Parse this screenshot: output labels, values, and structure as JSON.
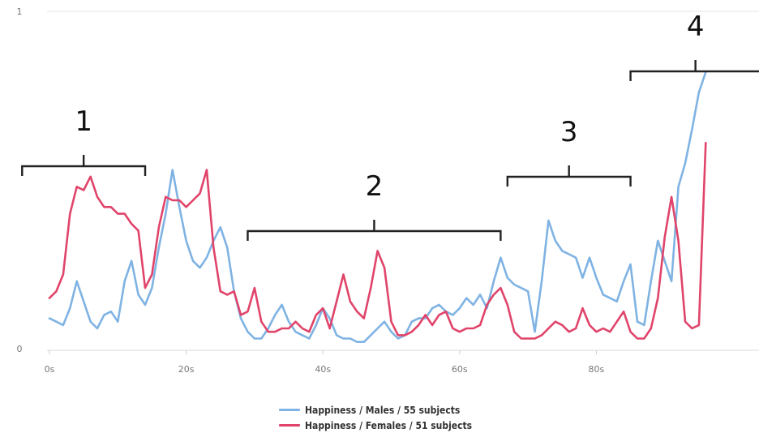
{
  "chart_data": {
    "type": "line",
    "x_unit": "s",
    "xlim": [
      0,
      97
    ],
    "ylim": [
      0,
      1
    ],
    "x_ticks": [
      {
        "value": 0,
        "label": "0s"
      },
      {
        "value": 20,
        "label": "20s"
      },
      {
        "value": 40,
        "label": "40s"
      },
      {
        "value": 60,
        "label": "60s"
      },
      {
        "value": 80,
        "label": "80s"
      }
    ],
    "y_ticks": [
      {
        "value": 0,
        "label": "0"
      },
      {
        "value": 1,
        "label": "1"
      }
    ],
    "grid": "horizontal",
    "legend_position": "bottom",
    "series": [
      {
        "name": "Happiness / Males / 55 subjects",
        "color": "#7fb3e3",
        "x": [
          0,
          1,
          2,
          3,
          4,
          5,
          6,
          7,
          8,
          9,
          10,
          11,
          12,
          13,
          14,
          15,
          16,
          17,
          18,
          19,
          20,
          21,
          22,
          23,
          24,
          25,
          26,
          27,
          28,
          29,
          30,
          31,
          32,
          33,
          34,
          35,
          36,
          37,
          38,
          39,
          40,
          41,
          42,
          43,
          44,
          45,
          46,
          47,
          48,
          49,
          50,
          51,
          52,
          53,
          54,
          55,
          56,
          57,
          58,
          59,
          60,
          61,
          62,
          63,
          64,
          65,
          66,
          67,
          68,
          69,
          70,
          71,
          72,
          73,
          74,
          75,
          76,
          77,
          78,
          79,
          80,
          81,
          82,
          83,
          84,
          85,
          86,
          87,
          88,
          89,
          90,
          91,
          92,
          93,
          94,
          95,
          96
        ],
        "values": [
          0.09,
          0.08,
          0.07,
          0.12,
          0.2,
          0.14,
          0.08,
          0.06,
          0.1,
          0.11,
          0.08,
          0.2,
          0.26,
          0.16,
          0.13,
          0.18,
          0.3,
          0.4,
          0.53,
          0.42,
          0.32,
          0.26,
          0.24,
          0.27,
          0.32,
          0.36,
          0.3,
          0.17,
          0.09,
          0.05,
          0.03,
          0.03,
          0.06,
          0.1,
          0.13,
          0.08,
          0.05,
          0.04,
          0.03,
          0.07,
          0.12,
          0.09,
          0.04,
          0.03,
          0.03,
          0.02,
          0.02,
          0.04,
          0.06,
          0.08,
          0.05,
          0.03,
          0.04,
          0.08,
          0.09,
          0.09,
          0.12,
          0.13,
          0.11,
          0.1,
          0.12,
          0.15,
          0.13,
          0.16,
          0.12,
          0.2,
          0.27,
          0.21,
          0.19,
          0.18,
          0.17,
          0.05,
          0.2,
          0.38,
          0.32,
          0.29,
          0.28,
          0.27,
          0.21,
          0.27,
          0.21,
          0.16,
          0.15,
          0.14,
          0.2,
          0.25,
          0.08,
          0.07,
          0.2,
          0.32,
          0.26,
          0.2,
          0.48,
          0.55,
          0.65,
          0.76,
          0.82
        ]
      },
      {
        "name": "Happiness / Females / 51 subjects",
        "color": "#e0446a",
        "x": [
          0,
          1,
          2,
          3,
          4,
          5,
          6,
          7,
          8,
          9,
          10,
          11,
          12,
          13,
          14,
          15,
          16,
          17,
          18,
          19,
          20,
          21,
          22,
          23,
          24,
          25,
          26,
          27,
          28,
          29,
          30,
          31,
          32,
          33,
          34,
          35,
          36,
          37,
          38,
          39,
          40,
          41,
          42,
          43,
          44,
          45,
          46,
          47,
          48,
          49,
          50,
          51,
          52,
          53,
          54,
          55,
          56,
          57,
          58,
          59,
          60,
          61,
          62,
          63,
          64,
          65,
          66,
          67,
          68,
          69,
          70,
          71,
          72,
          73,
          74,
          75,
          76,
          77,
          78,
          79,
          80,
          81,
          82,
          83,
          84,
          85,
          86,
          87,
          88,
          89,
          90,
          91,
          92,
          93,
          94,
          95,
          96
        ],
        "values": [
          0.15,
          0.17,
          0.22,
          0.4,
          0.48,
          0.47,
          0.51,
          0.45,
          0.42,
          0.42,
          0.4,
          0.4,
          0.37,
          0.35,
          0.18,
          0.22,
          0.36,
          0.45,
          0.44,
          0.44,
          0.42,
          0.44,
          0.46,
          0.53,
          0.3,
          0.17,
          0.16,
          0.17,
          0.1,
          0.11,
          0.18,
          0.08,
          0.05,
          0.05,
          0.06,
          0.06,
          0.08,
          0.06,
          0.05,
          0.1,
          0.12,
          0.06,
          0.14,
          0.22,
          0.14,
          0.11,
          0.09,
          0.18,
          0.29,
          0.24,
          0.08,
          0.04,
          0.04,
          0.05,
          0.07,
          0.1,
          0.07,
          0.1,
          0.11,
          0.06,
          0.05,
          0.06,
          0.06,
          0.07,
          0.13,
          0.16,
          0.18,
          0.13,
          0.05,
          0.03,
          0.03,
          0.03,
          0.04,
          0.06,
          0.08,
          0.07,
          0.05,
          0.06,
          0.12,
          0.07,
          0.05,
          0.06,
          0.05,
          0.08,
          0.11,
          0.05,
          0.03,
          0.03,
          0.06,
          0.15,
          0.33,
          0.45,
          0.32,
          0.08,
          0.06,
          0.07,
          0.61
        ]
      }
    ],
    "annotations": [
      {
        "label": "1",
        "x_start": -4,
        "x_end": 14
      },
      {
        "label": "2",
        "x_start": 29,
        "x_end": 66
      },
      {
        "label": "3",
        "x_start": 67,
        "x_end": 85
      },
      {
        "label": "4",
        "x_start": 85,
        "x_end": 104
      }
    ]
  }
}
